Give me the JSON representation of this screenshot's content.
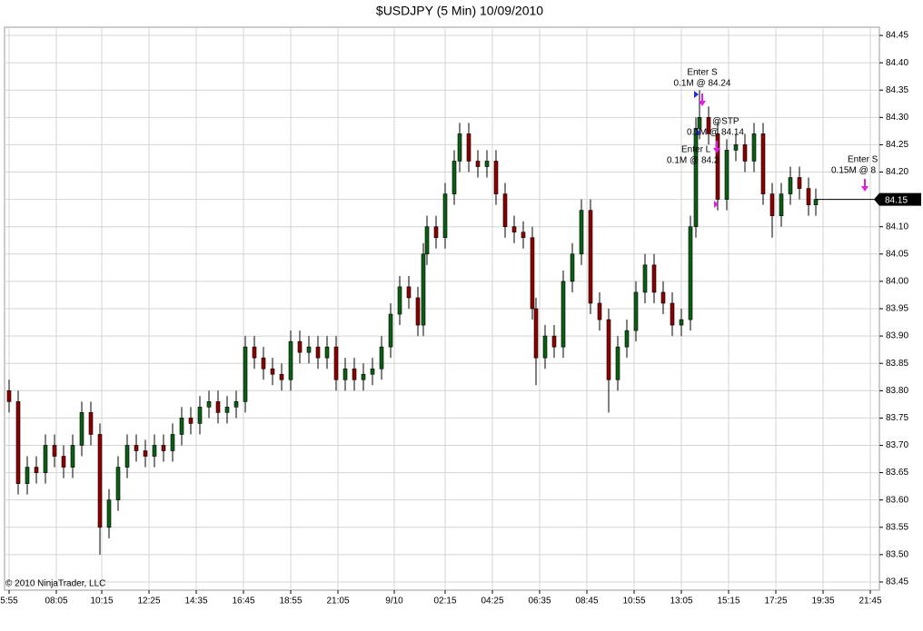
{
  "chart_data": {
    "type": "candlestick",
    "title": "$USDJPY (5 Min)  10/09/2010",
    "copyright": "© 2010 NinjaTrader, LLC",
    "up_color": "#0b5e16",
    "down_color": "#8b0000",
    "grid": true,
    "last_price": 84.15,
    "xlim": [
      -2.5,
      479
    ],
    "ylim": [
      83.435,
      84.465
    ],
    "xticks": [
      {
        "value": 0,
        "label": "5:55"
      },
      {
        "value": 26,
        "label": "08:05"
      },
      {
        "value": 51,
        "label": "10:15"
      },
      {
        "value": 77,
        "label": "12:25"
      },
      {
        "value": 103,
        "label": "14:35"
      },
      {
        "value": 129,
        "label": "16:45"
      },
      {
        "value": 155,
        "label": "18:55"
      },
      {
        "value": 181,
        "label": "21:05"
      },
      {
        "value": 212,
        "label": "9/10"
      },
      {
        "value": 240,
        "label": "02:15"
      },
      {
        "value": 266,
        "label": "04:25"
      },
      {
        "value": 292,
        "label": "06:35"
      },
      {
        "value": 318,
        "label": "08:45"
      },
      {
        "value": 344,
        "label": "10:55"
      },
      {
        "value": 370,
        "label": "13:05"
      },
      {
        "value": 396,
        "label": "15:15"
      },
      {
        "value": 422,
        "label": "17:25"
      },
      {
        "value": 448,
        "label": "19:35"
      },
      {
        "value": 474,
        "label": "21:45"
      }
    ],
    "yticks": [
      {
        "value": 83.45,
        "label": "83.45"
      },
      {
        "value": 83.5,
        "label": "83.50"
      },
      {
        "value": 83.55,
        "label": "83.55"
      },
      {
        "value": 83.6,
        "label": "83.60"
      },
      {
        "value": 83.65,
        "label": "83.65"
      },
      {
        "value": 83.7,
        "label": "83.70"
      },
      {
        "value": 83.75,
        "label": "83.75"
      },
      {
        "value": 83.8,
        "label": "83.80"
      },
      {
        "value": 83.85,
        "label": "83.85"
      },
      {
        "value": 83.9,
        "label": "83.90"
      },
      {
        "value": 83.95,
        "label": "83.95"
      },
      {
        "value": 84.0,
        "label": "84.00"
      },
      {
        "value": 84.05,
        "label": "84.05"
      },
      {
        "value": 84.1,
        "label": "84.10"
      },
      {
        "value": 84.15,
        "label": "84.15"
      },
      {
        "value": 84.2,
        "label": "84.20"
      },
      {
        "value": 84.25,
        "label": "84.25"
      },
      {
        "value": 84.3,
        "label": "84.30"
      },
      {
        "value": 84.35,
        "label": "84.35"
      },
      {
        "value": 84.4,
        "label": "84.40"
      },
      {
        "value": 84.45,
        "label": "84.45"
      }
    ],
    "annotations": [
      "Enter S",
      "0.1M @ 84.24",
      "@STP",
      "0.1M @ 84.14",
      "Enter L",
      "0.1M @ 84.2",
      "Enter S",
      "0.15M @ 8"
    ],
    "x": [
      0,
      5,
      10,
      15,
      20,
      25,
      30,
      35,
      40,
      45,
      50,
      55,
      60,
      65,
      70,
      75,
      80,
      85,
      90,
      95,
      100,
      105,
      110,
      115,
      120,
      125,
      130,
      135,
      140,
      145,
      150,
      155,
      160,
      165,
      170,
      175,
      180,
      185,
      190,
      195,
      200,
      205,
      210,
      215,
      220,
      225,
      228,
      230,
      235,
      240,
      245,
      248,
      253,
      258,
      263,
      268,
      273,
      278,
      283,
      288,
      290,
      295,
      300,
      305,
      310,
      315,
      320,
      325,
      330,
      335,
      340,
      345,
      350,
      355,
      360,
      365,
      370,
      375,
      378,
      380,
      385,
      390,
      395,
      400,
      405,
      410,
      415,
      420,
      425,
      430,
      435,
      440,
      444
    ],
    "open": [
      83.8,
      83.78,
      83.63,
      83.66,
      83.65,
      83.7,
      83.68,
      83.66,
      83.7,
      83.76,
      83.72,
      83.55,
      83.6,
      83.66,
      83.7,
      83.69,
      83.68,
      83.7,
      83.69,
      83.72,
      83.75,
      83.74,
      83.77,
      83.78,
      83.76,
      83.77,
      83.78,
      83.88,
      83.86,
      83.84,
      83.83,
      83.82,
      83.89,
      83.87,
      83.88,
      83.86,
      83.88,
      83.82,
      83.84,
      83.82,
      83.83,
      83.84,
      83.88,
      83.94,
      83.99,
      83.97,
      83.92,
      84.05,
      84.1,
      84.08,
      84.16,
      84.22,
      84.27,
      84.22,
      84.21,
      84.22,
      84.16,
      84.1,
      84.09,
      84.08,
      83.95,
      83.86,
      83.9,
      83.88,
      84.0,
      84.05,
      84.13,
      83.96,
      83.93,
      83.82,
      83.88,
      83.91,
      83.98,
      84.03,
      83.98,
      83.96,
      83.92,
      83.93,
      84.1,
      84.28,
      84.3,
      84.27,
      84.15,
      84.24,
      84.25,
      84.22,
      84.27,
      84.16,
      84.12,
      84.16,
      84.19,
      84.17,
      84.14
    ],
    "high": [
      83.82,
      83.8,
      83.68,
      83.68,
      83.72,
      83.72,
      83.7,
      83.72,
      83.78,
      83.78,
      83.74,
      83.62,
      83.68,
      83.72,
      83.72,
      83.71,
      83.72,
      83.72,
      83.74,
      83.77,
      83.77,
      83.79,
      83.8,
      83.8,
      83.79,
      83.8,
      83.9,
      83.9,
      83.88,
      83.86,
      83.85,
      83.91,
      83.91,
      83.9,
      83.9,
      83.9,
      83.9,
      83.86,
      83.86,
      83.85,
      83.86,
      83.9,
      83.96,
      84.01,
      84.01,
      83.99,
      84.07,
      84.12,
      84.12,
      84.18,
      84.24,
      84.29,
      84.29,
      84.24,
      84.24,
      84.24,
      84.18,
      84.12,
      84.11,
      84.1,
      83.97,
      83.92,
      83.92,
      84.02,
      84.07,
      84.15,
      84.15,
      83.98,
      83.95,
      83.9,
      83.93,
      84.0,
      84.05,
      84.05,
      84.0,
      83.98,
      83.95,
      84.12,
      84.3,
      84.35,
      84.32,
      84.29,
      84.26,
      84.27,
      84.27,
      84.29,
      84.29,
      84.18,
      84.18,
      84.21,
      84.21,
      84.19,
      84.17
    ],
    "low": [
      83.76,
      83.61,
      83.61,
      83.63,
      83.63,
      83.66,
      83.64,
      83.64,
      83.68,
      83.7,
      83.5,
      83.53,
      83.58,
      83.64,
      83.67,
      83.66,
      83.66,
      83.67,
      83.67,
      83.7,
      83.72,
      83.72,
      83.75,
      83.74,
      83.74,
      83.75,
      83.76,
      83.84,
      83.82,
      83.81,
      83.8,
      83.8,
      83.85,
      83.85,
      83.84,
      83.84,
      83.8,
      83.8,
      83.8,
      83.8,
      83.81,
      83.82,
      83.86,
      83.92,
      83.95,
      83.9,
      83.9,
      84.03,
      84.06,
      84.06,
      84.14,
      84.2,
      84.2,
      84.19,
      84.19,
      84.14,
      84.08,
      84.07,
      84.06,
      83.93,
      83.81,
      83.84,
      83.86,
      83.86,
      83.98,
      84.03,
      83.94,
      83.91,
      83.76,
      83.8,
      83.86,
      83.89,
      83.96,
      83.96,
      83.94,
      83.9,
      83.9,
      83.91,
      84.08,
      84.26,
      84.25,
      84.13,
      84.13,
      84.22,
      84.2,
      84.2,
      84.14,
      84.08,
      84.1,
      84.14,
      84.15,
      84.12,
      84.12
    ],
    "close": [
      83.78,
      83.63,
      83.66,
      83.65,
      83.7,
      83.68,
      83.66,
      83.7,
      83.76,
      83.72,
      83.55,
      83.6,
      83.66,
      83.7,
      83.69,
      83.68,
      83.7,
      83.69,
      83.72,
      83.75,
      83.74,
      83.77,
      83.78,
      83.76,
      83.77,
      83.78,
      83.88,
      83.86,
      83.84,
      83.83,
      83.82,
      83.89,
      83.87,
      83.88,
      83.86,
      83.88,
      83.82,
      83.84,
      83.82,
      83.83,
      83.84,
      83.88,
      83.94,
      83.99,
      83.97,
      83.92,
      84.05,
      84.1,
      84.08,
      84.16,
      84.22,
      84.27,
      84.22,
      84.21,
      84.22,
      84.16,
      84.1,
      84.09,
      84.08,
      83.95,
      83.86,
      83.9,
      83.88,
      84.0,
      84.05,
      84.13,
      83.96,
      83.93,
      83.82,
      83.88,
      83.91,
      83.98,
      84.03,
      83.98,
      83.96,
      83.92,
      83.93,
      84.1,
      84.28,
      84.3,
      84.27,
      84.15,
      84.24,
      84.25,
      84.22,
      84.27,
      84.16,
      84.12,
      84.16,
      84.19,
      84.17,
      84.14,
      84.15
    ]
  }
}
